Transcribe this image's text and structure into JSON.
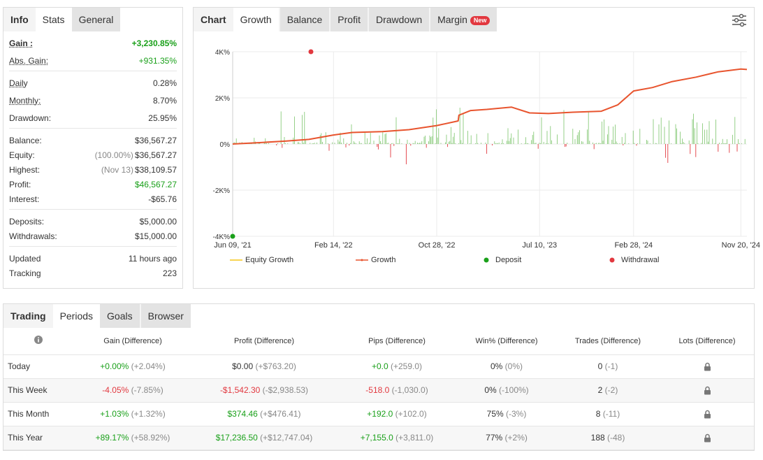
{
  "info_panel": {
    "tabs": [
      {
        "label": "Info",
        "state": "bold"
      },
      {
        "label": "Stats",
        "state": "active"
      },
      {
        "label": "General",
        "state": "grey"
      }
    ],
    "stats": {
      "gain": {
        "label": "Gain :",
        "value": "+3,230.85%"
      },
      "abs_gain": {
        "label": "Abs. Gain:",
        "value": "+931.35%"
      },
      "daily": {
        "label": "Daily",
        "value": "0.28%"
      },
      "monthly": {
        "label": "Monthly:",
        "value": "8.70%"
      },
      "drawdown": {
        "label": "Drawdown:",
        "value": "25.95%"
      },
      "balance": {
        "label": "Balance:",
        "value": "$36,567.27"
      },
      "equity": {
        "label": "Equity:",
        "prefix": "(100.00%)",
        "value": "$36,567.27"
      },
      "highest": {
        "label": "Highest:",
        "prefix": "(Nov 13)",
        "value": "$38,109.57"
      },
      "profit": {
        "label": "Profit:",
        "value": "$46,567.27"
      },
      "interest": {
        "label": "Interest:",
        "value": "-$65.76"
      },
      "deposits": {
        "label": "Deposits:",
        "value": "$5,000.00"
      },
      "withdrawals": {
        "label": "Withdrawals:",
        "value": "$15,000.00"
      },
      "updated": {
        "label": "Updated",
        "value": "11 hours ago"
      },
      "tracking": {
        "label": "Tracking",
        "value": "223"
      }
    }
  },
  "chart_panel": {
    "tabs": [
      {
        "label": "Chart",
        "state": "bold"
      },
      {
        "label": "Growth",
        "state": "active"
      },
      {
        "label": "Balance",
        "state": "grey"
      },
      {
        "label": "Profit",
        "state": "grey"
      },
      {
        "label": "Drawdown",
        "state": "grey"
      },
      {
        "label": "Margin",
        "state": "grey",
        "badge": "New"
      }
    ],
    "settings_icon": "sliders-icon"
  },
  "chart_data": {
    "type": "line",
    "x_ticks": [
      "Jun 09, '21",
      "Feb 14, '22",
      "Oct 28, '22",
      "Jul 10, '23",
      "Feb 28, '24",
      "Nov 20, '24"
    ],
    "y_ticks": [
      "4K%",
      "2K%",
      "0%",
      "-2K%",
      "-4K%"
    ],
    "ylim": [
      -4000,
      4000
    ],
    "xlim": [
      "2021-06-09",
      "2024-12-05"
    ],
    "grid": true,
    "legend": {
      "placement": "bottom",
      "items": [
        {
          "name": "Equity Growth",
          "color": "#f5c518",
          "marker": "line"
        },
        {
          "name": "Growth",
          "color": "#e8542e",
          "marker": "line"
        },
        {
          "name": "Deposit",
          "color": "#1aa01a",
          "marker": "dot"
        },
        {
          "name": "Withdrawal",
          "color": "#e2383f",
          "marker": "dot"
        }
      ]
    },
    "series": [
      {
        "name": "Growth",
        "color": "#e8542e",
        "points": [
          [
            "2021-06-09",
            0
          ],
          [
            "2021-08-15",
            60
          ],
          [
            "2021-10-20",
            130
          ],
          [
            "2021-12-15",
            200
          ],
          [
            "2022-02-14",
            390
          ],
          [
            "2022-04-01",
            500
          ],
          [
            "2022-06-15",
            540
          ],
          [
            "2022-08-20",
            620
          ],
          [
            "2022-10-28",
            800
          ],
          [
            "2022-12-20",
            1000
          ],
          [
            "2022-12-22",
            1250
          ],
          [
            "2023-01-20",
            1450
          ],
          [
            "2023-03-01",
            1500
          ],
          [
            "2023-05-01",
            1600
          ],
          [
            "2023-06-15",
            1350
          ],
          [
            "2023-08-01",
            1320
          ],
          [
            "2023-10-01",
            1380
          ],
          [
            "2023-12-10",
            1420
          ],
          [
            "2024-01-20",
            1700
          ],
          [
            "2024-02-28",
            2300
          ],
          [
            "2024-04-15",
            2450
          ],
          [
            "2024-06-01",
            2700
          ],
          [
            "2024-08-01",
            2900
          ],
          [
            "2024-09-25",
            3130
          ],
          [
            "2024-11-20",
            3250
          ],
          [
            "2024-12-05",
            3230
          ]
        ]
      }
    ],
    "markers": [
      {
        "type": "Deposit",
        "x": "2021-06-09",
        "y": -4000,
        "color": "#1aa01a"
      },
      {
        "type": "Withdrawal",
        "x": "2021-12-20",
        "y": 4000,
        "color": "#e2383f"
      }
    ],
    "daily_bars_note": "green/red daily change bars around 0%"
  },
  "periods_panel": {
    "tabs": [
      {
        "label": "Trading",
        "state": "bold"
      },
      {
        "label": "Periods",
        "state": "active"
      },
      {
        "label": "Goals",
        "state": "grey"
      },
      {
        "label": "Browser",
        "state": "grey"
      }
    ],
    "headers": [
      "",
      "Gain (Difference)",
      "Profit (Difference)",
      "Pips (Difference)",
      "Win% (Difference)",
      "Trades (Difference)",
      "Lots (Difference)"
    ],
    "rows": [
      {
        "period": "Today",
        "gain": "+0.00%",
        "gain_diff": "(+2.04%)",
        "gain_color": "green",
        "profit": "$0.00",
        "profit_diff": "(+$763.20)",
        "profit_color": "neutral",
        "pips": "+0.0",
        "pips_diff": "(+259.0)",
        "pips_color": "green",
        "win": "0%",
        "win_diff": "(0%)",
        "trades": "0",
        "trades_diff": "(-1)"
      },
      {
        "period": "This Week",
        "gain": "-4.05%",
        "gain_diff": "(-7.85%)",
        "gain_color": "red",
        "profit": "-$1,542.30",
        "profit_diff": "(-$2,938.53)",
        "profit_color": "red",
        "pips": "-518.0",
        "pips_diff": "(-1,030.0)",
        "pips_color": "red",
        "win": "0%",
        "win_diff": "(-100%)",
        "trades": "2",
        "trades_diff": "(-2)"
      },
      {
        "period": "This Month",
        "gain": "+1.03%",
        "gain_diff": "(+1.32%)",
        "gain_color": "green",
        "profit": "$374.46",
        "profit_diff": "(+$476.41)",
        "profit_color": "green",
        "pips": "+192.0",
        "pips_diff": "(+102.0)",
        "pips_color": "green",
        "win": "75%",
        "win_diff": "(-3%)",
        "trades": "8",
        "trades_diff": "(-11)"
      },
      {
        "period": "This Year",
        "gain": "+89.17%",
        "gain_diff": "(+58.92%)",
        "gain_color": "green",
        "profit": "$17,236.50",
        "profit_diff": "(+$12,747.04)",
        "profit_color": "green",
        "pips": "+7,155.0",
        "pips_diff": "(+3,811.0)",
        "pips_color": "green",
        "win": "77%",
        "win_diff": "(+2%)",
        "trades": "188",
        "trades_diff": "(-48)"
      }
    ]
  }
}
